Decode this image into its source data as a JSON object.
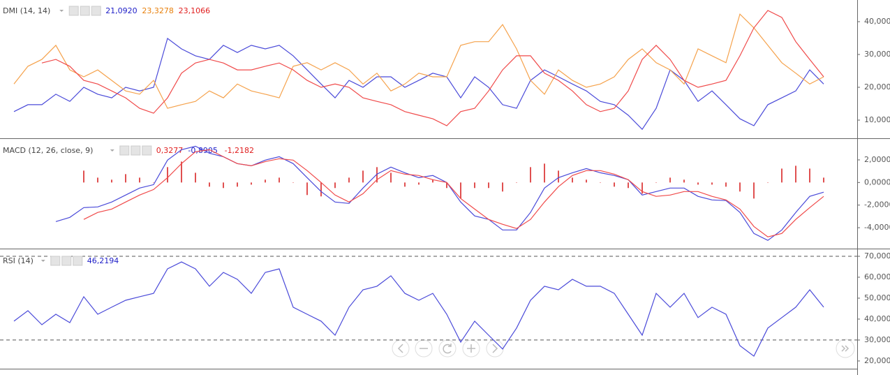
{
  "chart_data": [
    {
      "type": "line",
      "title": "DMI (14, 14)",
      "ylim": [
        4.47,
        46.6
      ],
      "yticks": [
        {
          "value": 10,
          "label": "10,0000"
        },
        {
          "value": 20,
          "label": "20,0000"
        },
        {
          "value": 30,
          "label": "30,0000"
        },
        {
          "value": 40,
          "label": "40,0000"
        }
      ],
      "series": [
        {
          "name": "21,0920",
          "color": "#4a4ad9",
          "legend_color": "#2020c8",
          "values": [
            12.6,
            14.7,
            14.7,
            17.9,
            15.7,
            20,
            17.9,
            16.8,
            20,
            18.9,
            20,
            34.9,
            31.7,
            29.6,
            28.5,
            32.8,
            30.6,
            32.8,
            31.7,
            32.8,
            29.6,
            25.3,
            21,
            16.8,
            22.1,
            20,
            23.2,
            23.2,
            20,
            22.1,
            24.3,
            23.2,
            16.8,
            23.2,
            20,
            14.7,
            13.6,
            22.1,
            25.3,
            23.2,
            21,
            18.9,
            15.7,
            14.7,
            11.5,
            7.2,
            13.6,
            25.3,
            22.1,
            15.7,
            18.9,
            14.7,
            10.4,
            8.3,
            14.7,
            16.8,
            18.9,
            25.3,
            21
          ]
        },
        {
          "name": "23,3278",
          "color": "#f5a24c",
          "legend_color": "#e8800c",
          "values": [
            21,
            26.4,
            28.5,
            32.8,
            25.3,
            23.2,
            25.3,
            22.1,
            18.9,
            17.9,
            22.1,
            13.6,
            14.7,
            15.7,
            18.9,
            16.8,
            21,
            18.9,
            17.9,
            16.8,
            26.4,
            27.5,
            25.3,
            27.5,
            25.3,
            21,
            24.3,
            18.9,
            21,
            24.3,
            23.2,
            23.2,
            32.8,
            33.9,
            33.9,
            39.1,
            31.7,
            22.1,
            17.9,
            25.3,
            22.1,
            20,
            21,
            23.2,
            28.5,
            31.7,
            27.5,
            25.3,
            21,
            31.7,
            29.6,
            27.5,
            42.3,
            38.1,
            32.8,
            27.5,
            24.3,
            21,
            23.2
          ]
        },
        {
          "name": "23,1066",
          "color": "#f04a4a",
          "legend_color": "#e01e1e",
          "values": [
            null,
            null,
            27.4,
            28.5,
            26.4,
            22.1,
            21,
            18.9,
            16.8,
            13.6,
            12.1,
            16.8,
            24.3,
            27.4,
            28.5,
            27.4,
            25.3,
            25.3,
            26.4,
            27.4,
            25.3,
            22.1,
            20,
            21,
            20,
            16.8,
            15.7,
            14.7,
            12.6,
            11.5,
            10.4,
            8.3,
            12.6,
            13.6,
            18.9,
            25.3,
            29.6,
            29.6,
            24.3,
            22.1,
            18.9,
            14.7,
            12.6,
            13.6,
            18.9,
            28.5,
            32.8,
            28.5,
            22.1,
            20,
            21,
            22.1,
            29.6,
            38.1,
            43.4,
            41.3,
            33.9,
            28.5,
            23.2
          ]
        }
      ]
    },
    {
      "type": "line",
      "title": "MACD (12, 26, close, 9)",
      "ylim": [
        -5.85,
        3.79
      ],
      "yticks": [
        {
          "value": -4,
          "label": "-4,0000"
        },
        {
          "value": -2,
          "label": "-2,0000"
        },
        {
          "value": 0,
          "label": "0,0000"
        },
        {
          "value": 2,
          "label": "2,0000"
        }
      ],
      "series": [
        {
          "name": "0,3277",
          "style": "histogram",
          "color": "#e05050",
          "legend_color": "#e01e1e",
          "values": [
            null,
            null,
            null,
            null,
            null,
            1.05,
            0.43,
            0.25,
            0.74,
            0.43,
            0,
            1.36,
            1.85,
            0.86,
            -0.37,
            -0.49,
            -0.37,
            -0.19,
            0.25,
            0.43,
            0,
            -1.11,
            -1.23,
            -0.49,
            0.43,
            1.05,
            1.36,
            0.86,
            -0.37,
            -0.19,
            0.25,
            -0.49,
            -1.42,
            -0.49,
            -0.49,
            -0.8,
            0,
            1.36,
            1.67,
            1.05,
            0.43,
            0.25,
            0,
            -0.37,
            -0.49,
            -0.99,
            0,
            0.43,
            0.25,
            -0.19,
            -0.19,
            -0.37,
            -0.8,
            -1.42,
            0,
            1.23,
            1.48,
            1.23,
            0.43
          ]
        },
        {
          "name": "-0,8905",
          "color": "#4a4ad9",
          "legend_color": "#2020c8",
          "values": [
            null,
            null,
            null,
            -3.46,
            -3.09,
            -2.22,
            -2.16,
            -1.73,
            -1.11,
            -0.49,
            -0.19,
            1.98,
            2.9,
            3.21,
            2.59,
            2.28,
            1.67,
            1.48,
            1.98,
            2.28,
            1.67,
            0.43,
            -0.8,
            -1.73,
            -1.85,
            -0.49,
            0.74,
            1.36,
            0.86,
            0.43,
            0.62,
            0,
            -1.73,
            -2.96,
            -3.27,
            -4.2,
            -4.2,
            -2.65,
            -0.49,
            0.43,
            0.86,
            1.23,
            0.86,
            0.62,
            0.25,
            -1.11,
            -0.8,
            -0.49,
            -0.49,
            -1.23,
            -1.54,
            -1.6,
            -2.65,
            -4.51,
            -5.12,
            -4.2,
            -2.65,
            -1.23,
            -0.86
          ]
        },
        {
          "name": "-1,2182",
          "color": "#f04a4a",
          "legend_color": "#e01e1e",
          "values": [
            null,
            null,
            null,
            null,
            null,
            -3.27,
            -2.65,
            -2.35,
            -1.73,
            -1.11,
            -0.62,
            0.43,
            1.67,
            2.72,
            2.9,
            2.28,
            1.67,
            1.48,
            1.85,
            2.1,
            1.98,
            1.05,
            0,
            -1.11,
            -1.73,
            -0.99,
            0.25,
            1.05,
            0.74,
            0.62,
            0.25,
            0,
            -1.42,
            -2.35,
            -3.27,
            -3.7,
            -4.07,
            -3.27,
            -1.73,
            -0.37,
            0.62,
            1.05,
            1.05,
            0.74,
            0.25,
            -0.8,
            -1.23,
            -1.11,
            -0.8,
            -0.8,
            -1.23,
            -1.54,
            -2.35,
            -3.89,
            -4.81,
            -4.51,
            -3.27,
            -2.22,
            -1.23
          ]
        }
      ]
    },
    {
      "type": "line",
      "title": "RSI (14)",
      "ylim": [
        16.3,
        73
      ],
      "yticks": [
        {
          "value": 20,
          "label": "20,0000"
        },
        {
          "value": 30,
          "label": "30,0000"
        },
        {
          "value": 40,
          "label": "40,0000"
        },
        {
          "value": 50,
          "label": "50,0000"
        },
        {
          "value": 60,
          "label": "60,0000"
        },
        {
          "value": 70,
          "label": "70,0000"
        }
      ],
      "levels": [
        70,
        30
      ],
      "series": [
        {
          "name": "46,2194",
          "color": "#4a4ad9",
          "legend_color": "#2020c8",
          "values": [
            39,
            44,
            37.3,
            42.3,
            38.3,
            50.7,
            42.3,
            45.7,
            49,
            50.7,
            52.3,
            64,
            67.3,
            64,
            55.7,
            62.3,
            59,
            52.3,
            62.3,
            64,
            45.7,
            42.3,
            39,
            32.3,
            45.7,
            54,
            55.7,
            60.7,
            52.3,
            49,
            52.3,
            42.3,
            29,
            39,
            32.3,
            25.7,
            35.7,
            49,
            55.7,
            54,
            59,
            55.7,
            55.7,
            52.3,
            42.3,
            32.3,
            52.3,
            45.7,
            52.3,
            40.7,
            45.7,
            42.3,
            27.3,
            22.3,
            35.7,
            40.7,
            45.7,
            54,
            45.7
          ]
        }
      ]
    }
  ]
}
